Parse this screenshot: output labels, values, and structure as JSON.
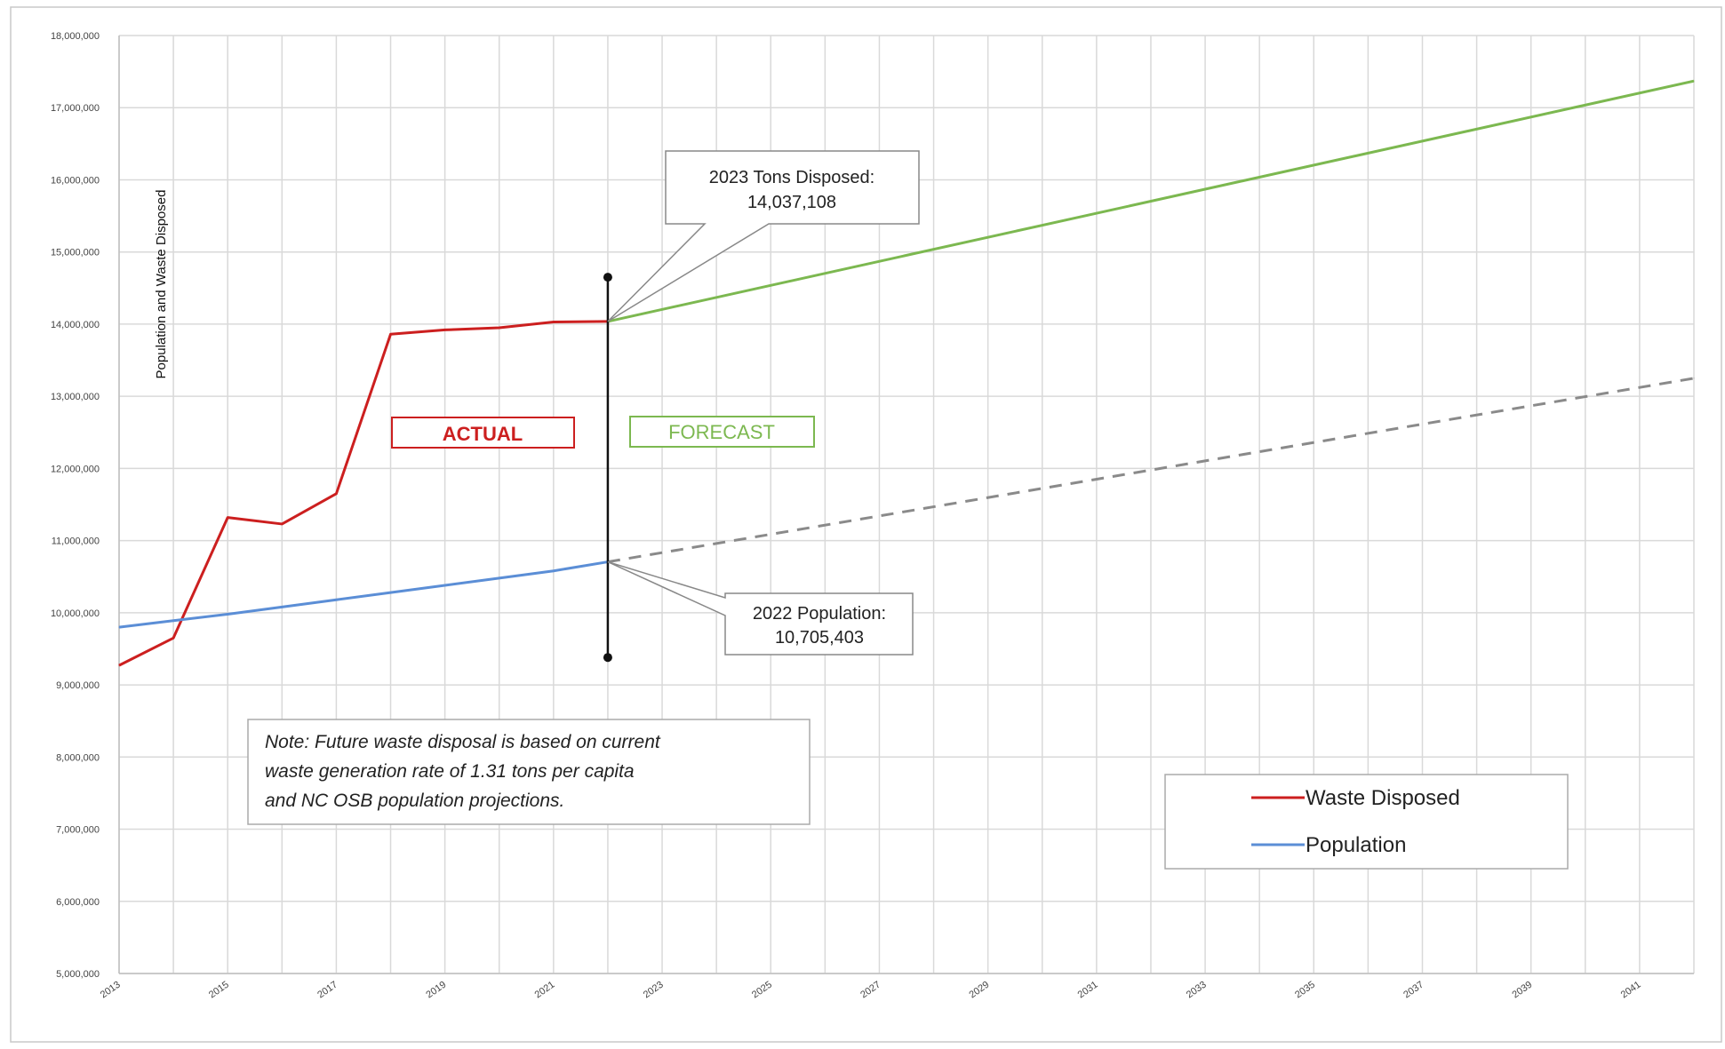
{
  "chart_data": {
    "type": "line",
    "title": "",
    "xlabel": "",
    "ylabel": "Population and  Waste Disposed",
    "xlim": [
      2013,
      2042
    ],
    "ylim": [
      5000000,
      18000000
    ],
    "y_ticks": [
      5000000,
      6000000,
      7000000,
      8000000,
      9000000,
      10000000,
      11000000,
      12000000,
      13000000,
      14000000,
      15000000,
      16000000,
      17000000,
      18000000
    ],
    "y_tick_labels": [
      "5,000,000",
      "6,000,000",
      "7,000,000",
      "8,000,000",
      "9,000,000",
      "10,000,000",
      "11,000,000",
      "12,000,000",
      "13,000,000",
      "14,000,000",
      "15,000,000",
      "16,000,000",
      "17,000,000",
      "18,000,000"
    ],
    "x_ticks": [
      2013,
      2015,
      2017,
      2019,
      2021,
      2023,
      2025,
      2027,
      2029,
      2031,
      2033,
      2035,
      2037,
      2039,
      2041
    ],
    "x_tick_labels": [
      "2013",
      "2015",
      "2017",
      "2019",
      "2021",
      "2023",
      "2025",
      "2027",
      "2029",
      "2031",
      "2033",
      "2035",
      "2037",
      "2039",
      "2041"
    ],
    "grid": true,
    "legend_position": "bottom-right",
    "series": [
      {
        "name": "Waste Disposed",
        "color": "#cc1f1f",
        "x": [
          2013,
          2014,
          2015,
          2016,
          2017,
          2018,
          2019,
          2020,
          2021,
          2022
        ],
        "values": [
          9270000,
          9650000,
          11320000,
          11230000,
          11650000,
          13860000,
          13920000,
          13950000,
          14030000,
          14037108
        ]
      },
      {
        "name": "Population",
        "color": "#5b8ed6",
        "x": [
          2013,
          2014,
          2015,
          2016,
          2017,
          2018,
          2019,
          2020,
          2021,
          2022
        ],
        "values": [
          9800000,
          9890000,
          9980000,
          10080000,
          10180000,
          10280000,
          10380000,
          10480000,
          10580000,
          10705403
        ]
      },
      {
        "color": "#7cb850",
        "style": "solid",
        "x": [
          2022,
          2042
        ],
        "values": [
          14037108,
          17370000
        ]
      },
      {
        "color": "#8a8a8a",
        "style": "dashed",
        "x": [
          2022,
          2042
        ],
        "values": [
          10705403,
          13250000
        ]
      }
    ],
    "divider": {
      "x": 2022,
      "y_top": 14650000,
      "y_bottom": 9380000
    },
    "annotations": {
      "tons_disposed": {
        "line1": "2023 Tons Disposed:",
        "line2": "14,037,108",
        "point_x": 2022,
        "point_y": 14037108
      },
      "population": {
        "line1": "2022 Population:",
        "line2": "10,705,403",
        "point_x": 2022,
        "point_y": 10705403
      },
      "actual_label": {
        "text": "ACTUAL",
        "color": "#cc1f1f"
      },
      "forecast_label": {
        "text": "FORECAST",
        "color": "#7cb850"
      },
      "note": {
        "line1": "Note: Future waste disposal is based on current",
        "line2": "waste generation rate of 1.31 tons per capita",
        "line3": "and NC OSB population projections."
      }
    }
  }
}
